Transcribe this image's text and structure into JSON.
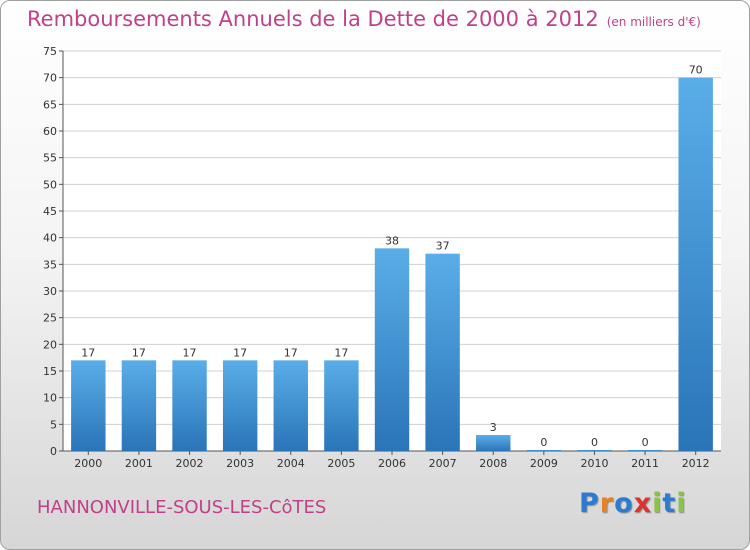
{
  "header": {
    "title": "Remboursements Annuels de la Dette de 2000 à 2012",
    "unit": "(en milliers d'€)"
  },
  "footer": {
    "commune": "HANNONVILLE-SOUS-LES-CôTES",
    "logo_letters": [
      "P",
      "r",
      "o",
      "x",
      "i",
      "t",
      "i"
    ],
    "logo_colors": [
      "#2a7bd1",
      "#e2832a",
      "#2a7bd1",
      "#e0322f",
      "#8bc34a",
      "#2a7bd1",
      "#8bc34a"
    ]
  },
  "colors": {
    "bar": "#3d8fd4",
    "bar_light": "#5aaee8",
    "bar_dark": "#2a74b8",
    "title": "#c0418a",
    "grid": "#d0d0d0"
  },
  "chart_data": {
    "type": "bar",
    "categories": [
      "2000",
      "2001",
      "2002",
      "2003",
      "2004",
      "2005",
      "2006",
      "2007",
      "2008",
      "2009",
      "2010",
      "2011",
      "2012"
    ],
    "values": [
      17,
      17,
      17,
      17,
      17,
      17,
      38,
      37,
      3,
      0,
      0,
      0,
      70
    ],
    "data_labels": [
      "17",
      "17",
      "17",
      "17",
      "17",
      "17",
      "38",
      "37",
      "3",
      "0",
      "0",
      "0",
      "70"
    ],
    "y_ticks": [
      "0",
      "5",
      "10",
      "15",
      "20",
      "25",
      "30",
      "35",
      "40",
      "45",
      "50",
      "55",
      "60",
      "65",
      "70",
      "75"
    ],
    "ylim": [
      0,
      75
    ],
    "grid": true,
    "title": "Remboursements Annuels de la Dette de 2000 à 2012",
    "xlabel": "",
    "ylabel": ""
  }
}
